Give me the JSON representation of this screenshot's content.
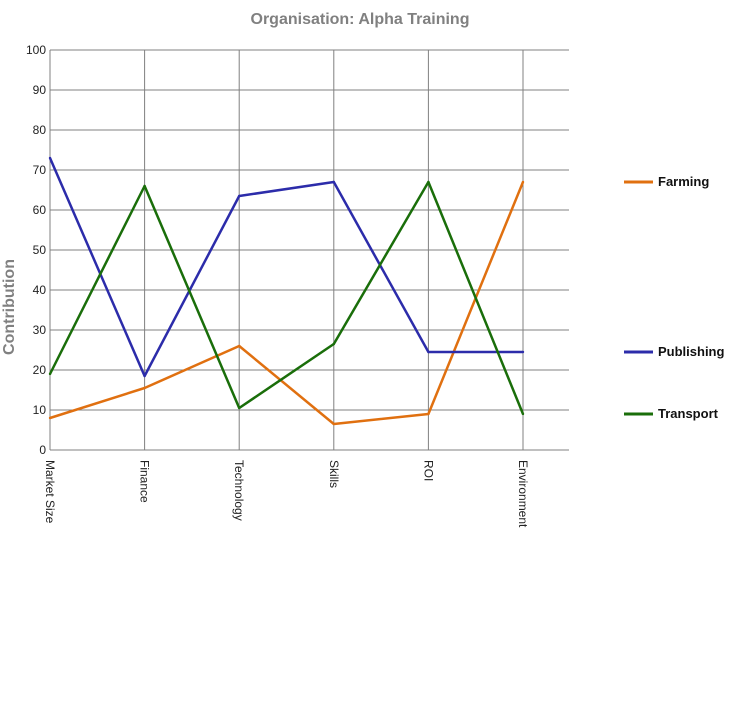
{
  "chart_data": {
    "type": "line",
    "title": "Organisation: Alpha Training",
    "xlabel": "",
    "ylabel": "Contribution",
    "categories": [
      "Market Size",
      "Finance",
      "Technology",
      "Skills",
      "ROI",
      "Environment"
    ],
    "ylim": [
      0,
      100
    ],
    "yticks": [
      0,
      10,
      20,
      30,
      40,
      50,
      60,
      70,
      80,
      90,
      100
    ],
    "grid": true,
    "legend_position": "right",
    "series": [
      {
        "name": "Farming",
        "color": "#e07010",
        "values": [
          8,
          15.5,
          26,
          6.5,
          9,
          67
        ]
      },
      {
        "name": "Publishing",
        "color": "#2c2caa",
        "values": [
          73,
          18.5,
          63.5,
          67,
          24.5,
          24.5
        ]
      },
      {
        "name": "Transport",
        "color": "#1a6e0a",
        "values": [
          19,
          66,
          10.5,
          26.5,
          67,
          9
        ]
      }
    ]
  }
}
